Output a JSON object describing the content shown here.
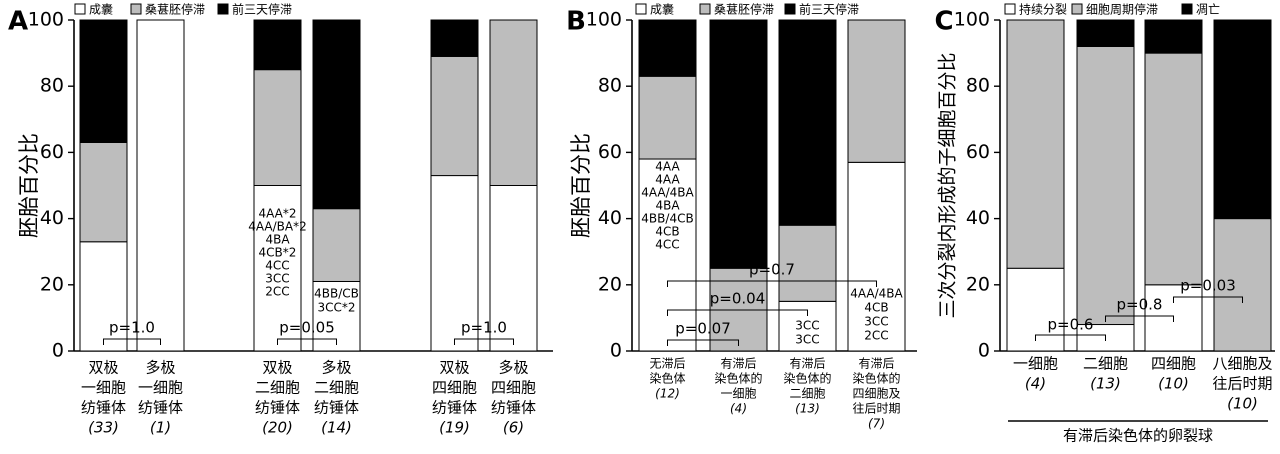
{
  "chart_data": [
    {
      "panel": "A",
      "type": "bar",
      "stacked": true,
      "ylabel": "胚胎百分比",
      "ylim": [
        0,
        100
      ],
      "yticks": [
        0,
        20,
        40,
        60,
        80,
        100
      ],
      "legend": {
        "position": "top",
        "entries": [
          "成囊",
          "桑葚胚停滞",
          "前三天停滞"
        ]
      },
      "series_colors": [
        "#ffffff",
        "#bdbdbd",
        "#000000"
      ],
      "categories": [
        {
          "lines": [
            "双极",
            "一细胞",
            "纺锤体"
          ],
          "n": "(33)"
        },
        {
          "lines": [
            "多极",
            "一细胞",
            "纺锤体"
          ],
          "n": "(1)"
        },
        {
          "lines": [
            "双极",
            "二细胞",
            "纺锤体"
          ],
          "n": "(20)"
        },
        {
          "lines": [
            "多极",
            "二细胞",
            "纺锤体"
          ],
          "n": "(14)"
        },
        {
          "lines": [
            "双极",
            "四细胞",
            "纺锤体"
          ],
          "n": "(19)"
        },
        {
          "lines": [
            "多极",
            "四细胞",
            "纺锤体"
          ],
          "n": "(6)"
        }
      ],
      "series": [
        {
          "name": "成囊",
          "values": [
            33,
            100,
            50,
            21,
            53,
            50
          ]
        },
        {
          "name": "桑葚胚停滞",
          "values": [
            30,
            0,
            35,
            22,
            36,
            50
          ]
        },
        {
          "name": "前三天停滞",
          "values": [
            37,
            0,
            15,
            57,
            11,
            0
          ]
        }
      ],
      "bar_annotations": [
        {
          "bar": 2,
          "lines": [
            "4AA*2",
            "4AA/BA*2",
            "4BA",
            "4CB*2",
            "4CC",
            "3CC",
            "2CC"
          ]
        },
        {
          "bar": 3,
          "lines": [
            "4BB/CB",
            "3CC*2"
          ]
        }
      ],
      "pvalues": [
        {
          "from": 0,
          "to": 1,
          "label": "p=1.0"
        },
        {
          "from": 2,
          "to": 3,
          "label": "p=0.05"
        },
        {
          "from": 4,
          "to": 5,
          "label": "p=1.0"
        }
      ]
    },
    {
      "panel": "B",
      "type": "bar",
      "stacked": true,
      "ylabel": "胚胎百分比",
      "ylim": [
        0,
        100
      ],
      "yticks": [
        0,
        20,
        40,
        60,
        80,
        100
      ],
      "legend": {
        "position": "top",
        "entries": [
          "成囊",
          "桑葚胚停滞",
          "前三天停滞"
        ]
      },
      "series_colors": [
        "#ffffff",
        "#bdbdbd",
        "#000000"
      ],
      "categories": [
        {
          "lines": [
            "无滞后",
            "染色体"
          ],
          "n": "(12)"
        },
        {
          "lines": [
            "有滞后",
            "染色体的",
            "一细胞"
          ],
          "n": "(4)"
        },
        {
          "lines": [
            "有滞后",
            "染色体的",
            "二细胞"
          ],
          "n": "(13)"
        },
        {
          "lines": [
            "有滞后",
            "染色体的",
            "四细胞及",
            "往后时期"
          ],
          "n": "(7)"
        }
      ],
      "series": [
        {
          "name": "成囊",
          "values": [
            58,
            0,
            15,
            57
          ]
        },
        {
          "name": "桑葚胚停滞",
          "values": [
            25,
            25,
            23,
            43
          ]
        },
        {
          "name": "前三天停滞",
          "values": [
            17,
            75,
            62,
            0
          ]
        }
      ],
      "bar_annotations": [
        {
          "bar": 0,
          "lines": [
            "4AA",
            "4AA",
            "4AA/4BA",
            "4BA",
            "4BB/4CB",
            "4CB",
            "4CC"
          ]
        },
        {
          "bar": 2,
          "lines": [
            "3CC",
            "3CC"
          ]
        },
        {
          "bar": 3,
          "lines": [
            "4AA/4BA",
            "4CB",
            "3CC",
            "2CC"
          ]
        }
      ],
      "pvalues": [
        {
          "from": 0,
          "to": 1,
          "label": "p=0.07"
        },
        {
          "from": 0,
          "to": 2,
          "label": "p=0.04"
        },
        {
          "from": 0,
          "to": 3,
          "label": "p=0.7"
        }
      ]
    },
    {
      "panel": "C",
      "type": "bar",
      "stacked": true,
      "ylabel": "三次分裂内形成的子细胞百分比",
      "ylim": [
        0,
        100
      ],
      "yticks": [
        0,
        20,
        40,
        60,
        80,
        100
      ],
      "legend": {
        "position": "top",
        "entries": [
          "持续分裂",
          "细胞周期停滞",
          "凋亡"
        ]
      },
      "series_colors": [
        "#ffffff",
        "#bdbdbd",
        "#000000"
      ],
      "categories": [
        {
          "lines": [
            "一细胞"
          ],
          "n": "(4)"
        },
        {
          "lines": [
            "二细胞"
          ],
          "n": "(13)"
        },
        {
          "lines": [
            "四细胞"
          ],
          "n": "(10)"
        },
        {
          "lines": [
            "八细胞及",
            "往后时期"
          ],
          "n": "(10)"
        }
      ],
      "group_label": "有滞后染色体的卵裂球",
      "series": [
        {
          "name": "持续分裂",
          "values": [
            25,
            8,
            20,
            0
          ]
        },
        {
          "name": "细胞周期停滞",
          "values": [
            75,
            84,
            70,
            40
          ]
        },
        {
          "name": "凋亡",
          "values": [
            0,
            8,
            10,
            60
          ]
        }
      ],
      "pvalues": [
        {
          "from": 0,
          "to": 1,
          "label": "p=0.6"
        },
        {
          "from": 1,
          "to": 2,
          "label": "p=0.8"
        },
        {
          "from": 2,
          "to": 3,
          "label": "p=0.03"
        }
      ]
    }
  ]
}
